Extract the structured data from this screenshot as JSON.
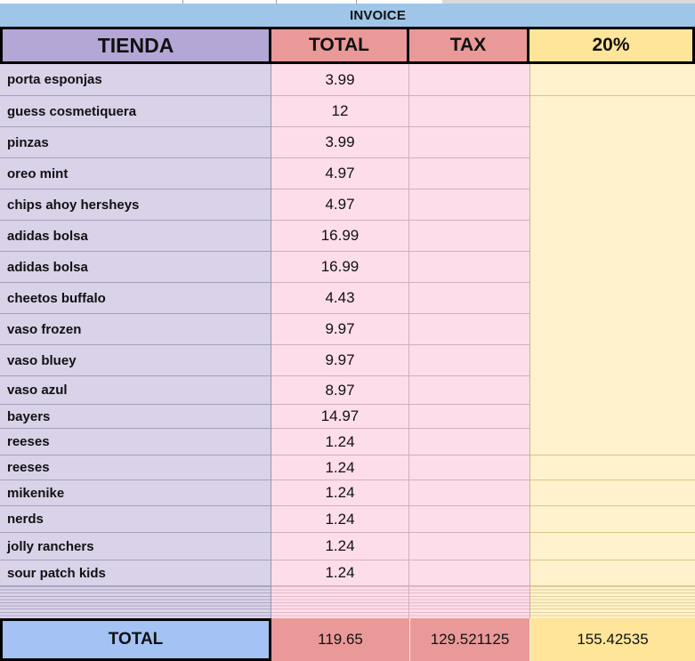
{
  "title": "INVOICE",
  "columns": [
    "TIENDA",
    "TOTAL",
    "TAX",
    "20%"
  ],
  "items": [
    {
      "name": "porta esponjas",
      "total": "3.99",
      "tax": "",
      "pct20": ""
    },
    {
      "name": "guess cosmetiquera",
      "total": "12",
      "tax": "",
      "pct20": ""
    },
    {
      "name": "pinzas",
      "total": "3.99",
      "tax": "",
      "pct20": ""
    },
    {
      "name": "oreo mint",
      "total": "4.97",
      "tax": "",
      "pct20": ""
    },
    {
      "name": "chips ahoy hersheys",
      "total": "4.97",
      "tax": "",
      "pct20": ""
    },
    {
      "name": "adidas bolsa",
      "total": "16.99",
      "tax": "",
      "pct20": ""
    },
    {
      "name": "adidas bolsa",
      "total": "16.99",
      "tax": "",
      "pct20": ""
    },
    {
      "name": "cheetos buffalo",
      "total": "4.43",
      "tax": "",
      "pct20": ""
    },
    {
      "name": "vaso frozen",
      "total": "9.97",
      "tax": "",
      "pct20": ""
    },
    {
      "name": "vaso bluey",
      "total": "9.97",
      "tax": "",
      "pct20": ""
    },
    {
      "name": "vaso azul",
      "total": "8.97",
      "tax": "",
      "pct20": ""
    },
    {
      "name": "bayers",
      "total": "14.97",
      "tax": "",
      "pct20": ""
    },
    {
      "name": "reeses",
      "total": "1.24",
      "tax": "",
      "pct20": ""
    },
    {
      "name": "reeses",
      "total": "1.24",
      "tax": "",
      "pct20": ""
    },
    {
      "name": "mikenike",
      "total": "1.24",
      "tax": "",
      "pct20": ""
    },
    {
      "name": "nerds",
      "total": "1.24",
      "tax": "",
      "pct20": ""
    },
    {
      "name": "jolly ranchers",
      "total": "1.24",
      "tax": "",
      "pct20": ""
    },
    {
      "name": "sour patch kids",
      "total": "1.24",
      "tax": "",
      "pct20": ""
    }
  ],
  "summary": {
    "label": "TOTAL",
    "total": "119.65",
    "tax": "129.521125",
    "pct20": "155.42535"
  },
  "colors": {
    "invoice_bar": "#9fc5e8",
    "header_tienda": "#b4a7d6",
    "header_total": "#ea9999",
    "header_tax": "#ea9999",
    "header_pct": "#ffe599",
    "cell_name": "#d9d2e9",
    "cell_value": "#fcdde9",
    "cell_pct": "#fff2cc",
    "summary_label_bg": "#a4c2f4",
    "summary_value_bg": "#ea9999",
    "summary_pct_bg": "#ffe599"
  }
}
